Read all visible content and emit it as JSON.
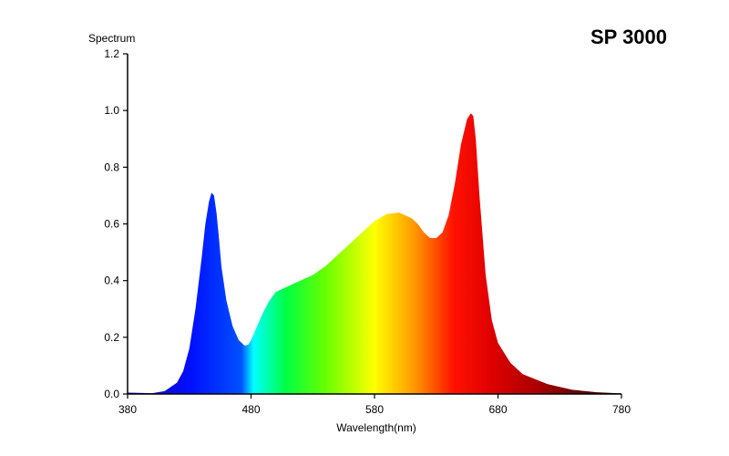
{
  "chart_data": {
    "type": "area",
    "title": "SP 3000",
    "xlabel": "Wavelength(nm)",
    "ylabel": "Spectrum",
    "xlim": [
      380,
      780
    ],
    "ylim": [
      0,
      1.2
    ],
    "x_ticks": [
      380,
      480,
      580,
      680,
      780
    ],
    "y_ticks": [
      "0.0",
      "0.2",
      "0.4",
      "0.6",
      "0.8",
      "1.0",
      "1.2"
    ],
    "grid": false,
    "fill": "wavelength-colored spectrum",
    "series": [
      {
        "x": [
          380,
          400,
          410,
          420,
          425,
          430,
          435,
          440,
          443,
          446,
          448,
          450,
          452,
          454,
          456,
          460,
          465,
          470,
          475,
          478,
          480,
          485,
          490,
          495,
          500,
          505,
          510,
          515,
          520,
          530,
          540,
          550,
          560,
          570,
          580,
          590,
          600,
          610,
          615,
          620,
          625,
          630,
          635,
          640,
          645,
          650,
          655,
          658,
          660,
          662,
          665,
          670,
          675,
          680,
          690,
          700,
          720,
          740,
          760,
          780
        ],
        "y": [
          0.005,
          0.003,
          0.01,
          0.04,
          0.08,
          0.16,
          0.3,
          0.48,
          0.6,
          0.68,
          0.71,
          0.7,
          0.64,
          0.55,
          0.45,
          0.33,
          0.24,
          0.19,
          0.17,
          0.175,
          0.19,
          0.24,
          0.29,
          0.33,
          0.36,
          0.37,
          0.38,
          0.39,
          0.4,
          0.42,
          0.45,
          0.49,
          0.53,
          0.57,
          0.61,
          0.635,
          0.64,
          0.62,
          0.6,
          0.57,
          0.55,
          0.55,
          0.57,
          0.63,
          0.74,
          0.88,
          0.97,
          0.99,
          0.98,
          0.9,
          0.7,
          0.42,
          0.26,
          0.18,
          0.11,
          0.07,
          0.035,
          0.015,
          0.006,
          0.002
        ]
      }
    ]
  }
}
